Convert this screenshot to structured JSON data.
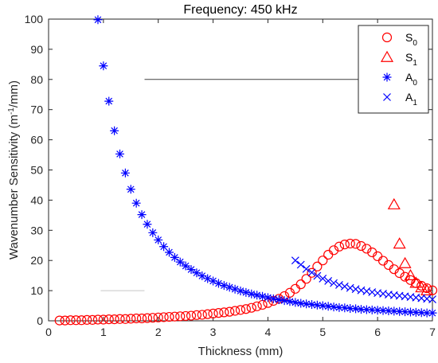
{
  "chart_data": {
    "type": "scatter",
    "title": "Frequency: 450 kHz",
    "xlabel": "Thickness (mm)",
    "ylabel": {
      "main": "Wavenumber Sensitivity (m",
      "sup": "-1",
      "tail": "/mm)"
    },
    "xlim": [
      0,
      7
    ],
    "ylim": [
      0,
      100
    ],
    "xticks": [
      0,
      1,
      2,
      3,
      4,
      5,
      6,
      7
    ],
    "yticks": [
      0,
      10,
      20,
      30,
      40,
      50,
      60,
      70,
      80,
      90,
      100
    ],
    "grid": false,
    "legend_position": "top-right",
    "series": [
      {
        "name": "S0",
        "name_main": "S",
        "name_sub": "0",
        "marker": "circle",
        "color": "#ff0000",
        "x": [
          0.2,
          0.3,
          0.4,
          0.5,
          0.6,
          0.7,
          0.8,
          0.9,
          1.0,
          1.1,
          1.2,
          1.3,
          1.4,
          1.5,
          1.6,
          1.7,
          1.8,
          1.9,
          2.0,
          2.1,
          2.2,
          2.3,
          2.4,
          2.5,
          2.6,
          2.7,
          2.8,
          2.9,
          3.0,
          3.1,
          3.2,
          3.3,
          3.4,
          3.5,
          3.6,
          3.7,
          3.8,
          3.9,
          4.0,
          4.1,
          4.2,
          4.3,
          4.4,
          4.5,
          4.6,
          4.7,
          4.8,
          4.9,
          5.0,
          5.1,
          5.2,
          5.3,
          5.4,
          5.5,
          5.6,
          5.7,
          5.8,
          5.9,
          6.0,
          6.1,
          6.2,
          6.3,
          6.4,
          6.5,
          6.6,
          6.7,
          6.8,
          6.9,
          7.0
        ],
        "y": [
          0.1,
          0.1,
          0.2,
          0.2,
          0.2,
          0.3,
          0.3,
          0.4,
          0.4,
          0.5,
          0.5,
          0.6,
          0.6,
          0.7,
          0.8,
          0.8,
          0.9,
          1.0,
          1.1,
          1.2,
          1.3,
          1.4,
          1.5,
          1.6,
          1.7,
          1.9,
          2.0,
          2.2,
          2.4,
          2.6,
          2.8,
          3.0,
          3.3,
          3.6,
          3.9,
          4.3,
          4.8,
          5.3,
          5.9,
          6.6,
          7.3,
          8.2,
          9.3,
          10.6,
          12.1,
          13.9,
          15.9,
          18.0,
          20.0,
          21.9,
          23.4,
          24.6,
          25.3,
          25.6,
          25.5,
          24.8,
          23.9,
          22.7,
          21.4,
          19.9,
          18.5,
          17.1,
          15.8,
          14.6,
          13.5,
          12.5,
          11.6,
          10.8,
          10.1
        ]
      },
      {
        "name": "S1",
        "name_main": "S",
        "name_sub": "1",
        "marker": "triangle",
        "color": "#ff0000",
        "x": [
          6.3,
          6.4,
          6.5,
          6.6,
          6.7,
          6.8,
          6.9
        ],
        "y": [
          38.5,
          25.5,
          19.0,
          15.0,
          12.5,
          11.0,
          10.0
        ]
      },
      {
        "name": "A0",
        "name_main": "A",
        "name_sub": "0",
        "marker": "asterisk",
        "color": "#0000ff",
        "x": [
          0.9,
          1.0,
          1.1,
          1.2,
          1.3,
          1.4,
          1.5,
          1.6,
          1.7,
          1.8,
          1.9,
          2.0,
          2.1,
          2.2,
          2.3,
          2.4,
          2.5,
          2.6,
          2.7,
          2.8,
          2.9,
          3.0,
          3.1,
          3.2,
          3.3,
          3.4,
          3.5,
          3.6,
          3.7,
          3.8,
          3.9,
          4.0,
          4.1,
          4.2,
          4.3,
          4.4,
          4.5,
          4.6,
          4.7,
          4.8,
          4.9,
          5.0,
          5.1,
          5.2,
          5.3,
          5.4,
          5.5,
          5.6,
          5.7,
          5.8,
          5.9,
          6.0,
          6.1,
          6.2,
          6.3,
          6.4,
          6.5,
          6.6,
          6.7,
          6.8,
          6.9,
          7.0
        ],
        "y": [
          99.8,
          84.5,
          72.8,
          63.0,
          55.3,
          49.0,
          43.6,
          39.0,
          35.2,
          32.0,
          29.2,
          26.8,
          24.6,
          22.7,
          21.0,
          19.5,
          18.2,
          17.0,
          15.9,
          14.9,
          14.0,
          13.2,
          12.4,
          11.7,
          11.1,
          10.5,
          9.9,
          9.4,
          8.9,
          8.5,
          8.1,
          7.7,
          7.3,
          7.0,
          6.7,
          6.4,
          6.1,
          5.8,
          5.6,
          5.4,
          5.2,
          5.0,
          4.8,
          4.6,
          4.4,
          4.3,
          4.1,
          4.0,
          3.8,
          3.7,
          3.6,
          3.5,
          3.4,
          3.3,
          3.2,
          3.1,
          3.0,
          2.9,
          2.8,
          2.7,
          2.6,
          2.6
        ]
      },
      {
        "name": "A1",
        "name_main": "A",
        "name_sub": "1",
        "marker": "x",
        "color": "#0000ff",
        "x": [
          4.5,
          4.6,
          4.7,
          4.8,
          4.9,
          5.0,
          5.1,
          5.2,
          5.3,
          5.4,
          5.5,
          5.6,
          5.7,
          5.8,
          5.9,
          6.0,
          6.1,
          6.2,
          6.3,
          6.4,
          6.5,
          6.6,
          6.7,
          6.8,
          6.9,
          7.0
        ],
        "y": [
          20.0,
          18.6,
          17.2,
          16.0,
          14.9,
          14.0,
          13.2,
          12.5,
          11.9,
          11.4,
          10.9,
          10.5,
          10.1,
          9.8,
          9.5,
          9.2,
          9.0,
          8.7,
          8.5,
          8.3,
          8.1,
          7.9,
          7.7,
          7.5,
          7.3,
          7.1
        ]
      }
    ]
  }
}
